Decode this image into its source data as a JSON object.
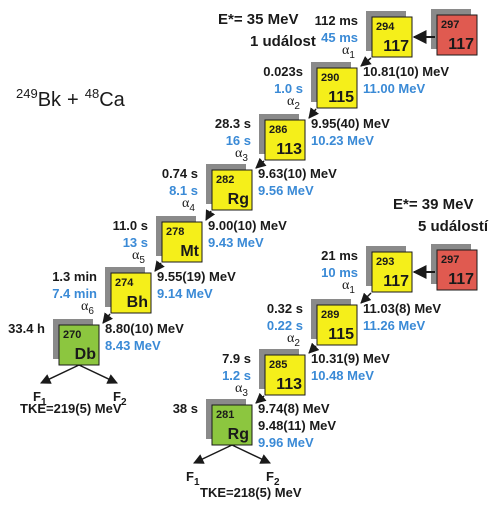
{
  "reaction": {
    "target_mass": "249",
    "target": "Bk",
    "plus": "+",
    "beam_mass": "48",
    "beam": "Ca"
  },
  "chains": [
    {
      "excitation": "E*= 35 MeV",
      "events": "1 událost",
      "compound": {
        "mass": "297",
        "element": "117"
      },
      "nodes": [
        {
          "mass": "294",
          "element": "117",
          "time_exp": "112 ms",
          "time_calc": "45 ms",
          "decay": {
            "alpha": {
              "symbol": "α",
              "index": "1"
            },
            "energy_exp": [
              "10.81(10) MeV"
            ],
            "energy_calc": [
              "11.00 MeV"
            ]
          }
        },
        {
          "mass": "290",
          "element": "115",
          "time_exp": "0.023s",
          "time_calc": "1.0 s",
          "decay": {
            "alpha": {
              "symbol": "α",
              "index": "2"
            },
            "energy_exp": [
              "9.95(40) MeV"
            ],
            "energy_calc": [
              "10.23 MeV"
            ]
          }
        },
        {
          "mass": "286",
          "element": "113",
          "time_exp": "28.3 s",
          "time_calc": "16 s",
          "decay": {
            "alpha": {
              "symbol": "α",
              "index": "3"
            },
            "energy_exp": [
              "9.63(10) MeV"
            ],
            "energy_calc": [
              "9.56 MeV"
            ]
          }
        },
        {
          "mass": "282",
          "element": "Rg",
          "time_exp": "0.74 s",
          "time_calc": "8.1 s",
          "decay": {
            "alpha": {
              "symbol": "α",
              "index": "4"
            },
            "energy_exp": [
              "9.00(10) MeV"
            ],
            "energy_calc": [
              "9.43 MeV"
            ]
          }
        },
        {
          "mass": "278",
          "element": "Mt",
          "time_exp": "11.0 s",
          "time_calc": "13 s",
          "decay": {
            "alpha": {
              "symbol": "α",
              "index": "5"
            },
            "energy_exp": [
              "9.55(19) MeV"
            ],
            "energy_calc": [
              "9.14 MeV"
            ]
          }
        },
        {
          "mass": "274",
          "element": "Bh",
          "time_exp": "1.3 min",
          "time_calc": "7.4 min",
          "decay": {
            "alpha": {
              "symbol": "α",
              "index": "6"
            },
            "energy_exp": [
              "8.80(10) MeV"
            ],
            "energy_calc": [
              "8.43 MeV"
            ]
          }
        },
        {
          "mass": "270",
          "element": "Db",
          "time_exp": "33.4 h",
          "fission": {
            "fragments": [
              {
                "symbol": "F",
                "index": "1"
              },
              {
                "symbol": "F",
                "index": "2"
              }
            ],
            "tke": "TKE=219(5) MeV"
          }
        }
      ]
    },
    {
      "excitation": "E*= 39 MeV",
      "events": "5 událostí",
      "compound": {
        "mass": "297",
        "element": "117"
      },
      "nodes": [
        {
          "mass": "293",
          "element": "117",
          "time_exp": "21 ms",
          "time_calc": "10 ms",
          "decay": {
            "alpha": {
              "symbol": "α",
              "index": "1"
            },
            "energy_exp": [
              "11.03(8) MeV"
            ],
            "energy_calc": [
              "11.26 MeV"
            ]
          }
        },
        {
          "mass": "289",
          "element": "115",
          "time_exp": "0.32 s",
          "time_calc": "0.22 s",
          "decay": {
            "alpha": {
              "symbol": "α",
              "index": "2"
            },
            "energy_exp": [
              "10.31(9) MeV"
            ],
            "energy_calc": [
              "10.48 MeV"
            ]
          }
        },
        {
          "mass": "285",
          "element": "113",
          "time_exp": "7.9 s",
          "time_calc": "1.2 s",
          "decay": {
            "alpha": {
              "symbol": "α",
              "index": "3"
            },
            "energy_exp": [
              "9.74(8) MeV",
              "9.48(11) MeV"
            ],
            "energy_calc": [
              "9.96 MeV"
            ]
          }
        },
        {
          "mass": "281",
          "element": "Rg",
          "time_exp": "38 s",
          "fission": {
            "fragments": [
              {
                "symbol": "F",
                "index": "1"
              },
              {
                "symbol": "F",
                "index": "2"
              }
            ],
            "tke": "TKE=218(5) MeV"
          }
        }
      ]
    }
  ]
}
